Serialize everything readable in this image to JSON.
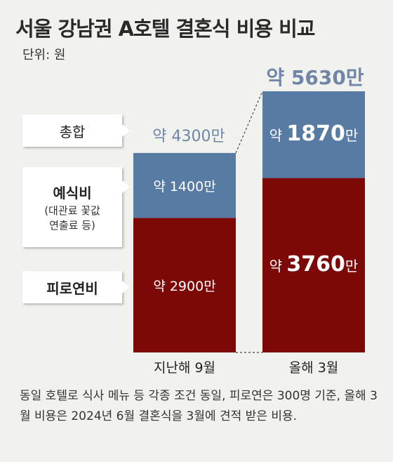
{
  "title": "서울 강남권 A호텔 결혼식 비용 비교",
  "unit_label": "단위: 원",
  "legend": {
    "total": "총합",
    "ceremony": "예식비",
    "ceremony_note_1": "(대관료 꽃값",
    "ceremony_note_2": "연출료 등)",
    "reception": "피로연비"
  },
  "footnote": "동일 호텔로 식사 메뉴 등 각종 조건 동일, 피로연은 300명 기준, 올해 3월 비용은 2024년 6월 결혼식을 3월에 견적 받은 비용.",
  "colors": {
    "ceremony": "#587ba3",
    "reception": "#7d0808",
    "total_text": "#6f86a6",
    "background": "#f1f1ee"
  },
  "chart_data": {
    "type": "bar",
    "stacked": true,
    "categories": [
      "지난해 9월",
      "올해 3월"
    ],
    "series": [
      {
        "name": "피로연비",
        "values": [
          2900,
          3760
        ],
        "labels": [
          "약 2900만",
          "약 3760만"
        ]
      },
      {
        "name": "예식비",
        "values": [
          1400,
          1870
        ],
        "labels": [
          "약 1400만",
          "약 1870만"
        ]
      }
    ],
    "totals": [
      4300,
      5630
    ],
    "total_labels": [
      "약 4300만",
      "약 5630만"
    ]
  }
}
